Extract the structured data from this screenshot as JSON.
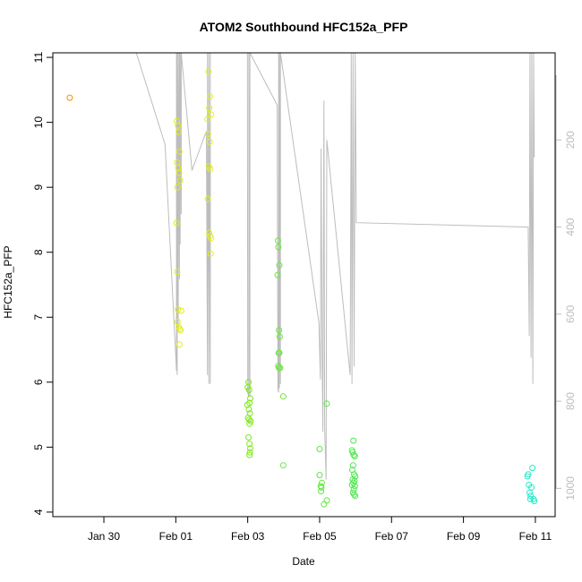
{
  "chart_data": {
    "type": "scatter",
    "title": "ATOM2 Southbound HFC152a_PFP",
    "xlabel": "Date",
    "ylabel": "HFC152a_PFP",
    "x_ticks": [
      "Jan 30",
      "Feb 01",
      "Feb 03",
      "Feb 05",
      "Feb 07",
      "Feb 09",
      "Feb 11"
    ],
    "x_tick_days": [
      -1,
      1,
      3,
      5,
      7,
      9,
      11
    ],
    "xlim_days": [
      -2.42,
      11.55
    ],
    "ylim": [
      3.93,
      11.07
    ],
    "y_ticks": [
      4,
      5,
      6,
      7,
      8,
      9,
      10,
      11
    ],
    "y2_ticks": [
      200,
      400,
      600,
      800,
      1000
    ],
    "y2lim": [
      0,
      1065
    ],
    "grid": false,
    "colors": {
      "axis": "#000000",
      "altitude_line": "#bdbdbd",
      "right_axis": "#bdbdbd"
    },
    "points": [
      {
        "d": -1.95,
        "v": 10.38,
        "c": "#ff8c00"
      },
      {
        "d": 1.03,
        "v": 10.02,
        "c": "#e2ee1c"
      },
      {
        "d": 1.06,
        "v": 9.95,
        "c": "#e2ee1c"
      },
      {
        "d": 1.08,
        "v": 9.85,
        "c": "#e2ee1c"
      },
      {
        "d": 1.1,
        "v": 9.55,
        "c": "#e2ee1c"
      },
      {
        "d": 1.04,
        "v": 9.38,
        "c": "#e2ee1c"
      },
      {
        "d": 1.07,
        "v": 9.3,
        "c": "#e2ee1c"
      },
      {
        "d": 1.09,
        "v": 9.22,
        "c": "#e2ee1c"
      },
      {
        "d": 1.12,
        "v": 9.1,
        "c": "#e2ee1c"
      },
      {
        "d": 1.05,
        "v": 9.0,
        "c": "#e2ee1c"
      },
      {
        "d": 1.02,
        "v": 8.45,
        "c": "#e2ee1c"
      },
      {
        "d": 1.04,
        "v": 7.7,
        "c": "#e2ee1c"
      },
      {
        "d": 1.06,
        "v": 7.12,
        "c": "#e2ee1c"
      },
      {
        "d": 1.15,
        "v": 7.1,
        "c": "#e2ee1c"
      },
      {
        "d": 1.05,
        "v": 6.93,
        "c": "#e2ee1c"
      },
      {
        "d": 1.08,
        "v": 6.85,
        "c": "#e2ee1c"
      },
      {
        "d": 1.11,
        "v": 6.82,
        "c": "#e2ee1c"
      },
      {
        "d": 1.13,
        "v": 6.8,
        "c": "#e2ee1c"
      },
      {
        "d": 1.1,
        "v": 6.58,
        "c": "#e2ee1c"
      },
      {
        "d": 1.91,
        "v": 10.78,
        "c": "#e5f020"
      },
      {
        "d": 1.95,
        "v": 10.4,
        "c": "#e5f020"
      },
      {
        "d": 1.93,
        "v": 10.22,
        "c": "#e5f020"
      },
      {
        "d": 1.98,
        "v": 10.12,
        "c": "#e5f020"
      },
      {
        "d": 1.88,
        "v": 10.05,
        "c": "#e5f020"
      },
      {
        "d": 1.9,
        "v": 9.82,
        "c": "#e5f020"
      },
      {
        "d": 1.94,
        "v": 9.7,
        "c": "#e5f020"
      },
      {
        "d": 1.92,
        "v": 9.32,
        "c": "#e5f020"
      },
      {
        "d": 1.96,
        "v": 9.28,
        "c": "#e5f020"
      },
      {
        "d": 1.89,
        "v": 8.82,
        "c": "#e5f020"
      },
      {
        "d": 1.93,
        "v": 8.3,
        "c": "#e5f020"
      },
      {
        "d": 1.95,
        "v": 8.25,
        "c": "#e5f020"
      },
      {
        "d": 1.98,
        "v": 8.22,
        "c": "#e5f020"
      },
      {
        "d": 1.97,
        "v": 7.98,
        "c": "#e5f020"
      },
      {
        "d": 3.02,
        "v": 6.0,
        "c": "#7ee81e"
      },
      {
        "d": 3.0,
        "v": 5.92,
        "c": "#7ee81e"
      },
      {
        "d": 3.04,
        "v": 5.88,
        "c": "#7ee81e"
      },
      {
        "d": 3.07,
        "v": 5.75,
        "c": "#7ee81e"
      },
      {
        "d": 3.05,
        "v": 5.68,
        "c": "#7ee81e"
      },
      {
        "d": 2.99,
        "v": 5.65,
        "c": "#7ee81e"
      },
      {
        "d": 3.03,
        "v": 5.58,
        "c": "#7ee81e"
      },
      {
        "d": 3.06,
        "v": 5.52,
        "c": "#7ee81e"
      },
      {
        "d": 3.01,
        "v": 5.45,
        "c": "#7ee81e"
      },
      {
        "d": 3.04,
        "v": 5.42,
        "c": "#7ee81e"
      },
      {
        "d": 3.08,
        "v": 5.4,
        "c": "#7ee81e"
      },
      {
        "d": 3.05,
        "v": 5.36,
        "c": "#7ee81e"
      },
      {
        "d": 3.02,
        "v": 5.15,
        "c": "#7ee81e"
      },
      {
        "d": 3.05,
        "v": 5.05,
        "c": "#7ee81e"
      },
      {
        "d": 3.07,
        "v": 4.98,
        "c": "#7ee81e"
      },
      {
        "d": 3.06,
        "v": 4.92,
        "c": "#7ee81e"
      },
      {
        "d": 3.05,
        "v": 4.88,
        "c": "#7ee81e"
      },
      {
        "d": 3.84,
        "v": 8.18,
        "c": "#6ce83a"
      },
      {
        "d": 3.85,
        "v": 8.08,
        "c": "#6ce83a"
      },
      {
        "d": 3.88,
        "v": 7.8,
        "c": "#6ce83a"
      },
      {
        "d": 3.83,
        "v": 7.65,
        "c": "#6ce83a"
      },
      {
        "d": 3.87,
        "v": 6.8,
        "c": "#6ce83a"
      },
      {
        "d": 3.89,
        "v": 6.7,
        "c": "#6ce83a"
      },
      {
        "d": 3.86,
        "v": 6.45,
        "c": "#6ce83a"
      },
      {
        "d": 3.88,
        "v": 6.45,
        "c": "#6ce83a"
      },
      {
        "d": 3.85,
        "v": 6.25,
        "c": "#6ce83a"
      },
      {
        "d": 3.87,
        "v": 6.22,
        "c": "#6ce83a"
      },
      {
        "d": 3.9,
        "v": 6.22,
        "c": "#6ce83a"
      },
      {
        "d": 3.99,
        "v": 5.78,
        "c": "#6ce83a"
      },
      {
        "d": 3.99,
        "v": 4.72,
        "c": "#6ce83a"
      },
      {
        "d": 5.0,
        "v": 4.97,
        "c": "#5ee840"
      },
      {
        "d": 5.0,
        "v": 4.57,
        "c": "#5ee840"
      },
      {
        "d": 5.06,
        "v": 4.45,
        "c": "#5ee840"
      },
      {
        "d": 5.03,
        "v": 4.4,
        "c": "#5ee840"
      },
      {
        "d": 5.05,
        "v": 4.38,
        "c": "#5ee840"
      },
      {
        "d": 5.04,
        "v": 4.32,
        "c": "#5ee840"
      },
      {
        "d": 5.2,
        "v": 5.67,
        "c": "#5ee840"
      },
      {
        "d": 5.2,
        "v": 4.18,
        "c": "#5ee840"
      },
      {
        "d": 5.12,
        "v": 4.12,
        "c": "#5ee840"
      },
      {
        "d": 5.94,
        "v": 5.1,
        "c": "#4ee84e"
      },
      {
        "d": 5.9,
        "v": 4.95,
        "c": "#4ee84e"
      },
      {
        "d": 5.92,
        "v": 4.92,
        "c": "#4ee84e"
      },
      {
        "d": 5.95,
        "v": 4.88,
        "c": "#4ee84e"
      },
      {
        "d": 5.98,
        "v": 4.86,
        "c": "#4ee84e"
      },
      {
        "d": 5.93,
        "v": 4.72,
        "c": "#4ee84e"
      },
      {
        "d": 5.91,
        "v": 4.65,
        "c": "#4ee84e"
      },
      {
        "d": 5.96,
        "v": 4.58,
        "c": "#4ee84e"
      },
      {
        "d": 5.99,
        "v": 4.55,
        "c": "#4ee84e"
      },
      {
        "d": 5.92,
        "v": 4.5,
        "c": "#4ee84e"
      },
      {
        "d": 5.97,
        "v": 4.48,
        "c": "#4ee84e"
      },
      {
        "d": 5.94,
        "v": 4.45,
        "c": "#4ee84e"
      },
      {
        "d": 5.9,
        "v": 4.42,
        "c": "#4ee84e"
      },
      {
        "d": 5.98,
        "v": 4.4,
        "c": "#4ee84e"
      },
      {
        "d": 5.95,
        "v": 4.35,
        "c": "#4ee84e"
      },
      {
        "d": 5.93,
        "v": 4.3,
        "c": "#4ee84e"
      },
      {
        "d": 5.96,
        "v": 4.27,
        "c": "#4ee84e"
      },
      {
        "d": 5.99,
        "v": 4.25,
        "c": "#4ee84e"
      },
      {
        "d": 10.8,
        "v": 4.58,
        "c": "#22ecc8"
      },
      {
        "d": 10.78,
        "v": 4.55,
        "c": "#22ecc8"
      },
      {
        "d": 10.92,
        "v": 4.68,
        "c": "#22ecc8"
      },
      {
        "d": 10.82,
        "v": 4.42,
        "c": "#22ecc8"
      },
      {
        "d": 10.89,
        "v": 4.38,
        "c": "#22ecc8"
      },
      {
        "d": 10.84,
        "v": 4.3,
        "c": "#22ecc8"
      },
      {
        "d": 10.87,
        "v": 4.25,
        "c": "#22ecc8"
      },
      {
        "d": 10.86,
        "v": 4.2,
        "c": "#22ecc8"
      },
      {
        "d": 10.95,
        "v": 4.2,
        "c": "#22ecc8"
      },
      {
        "d": 10.97,
        "v": 4.17,
        "c": "#22ecc8"
      }
    ],
    "altitude_track": [
      [
        -0.1,
        0
      ],
      [
        0.7,
        210
      ],
      [
        1.02,
        730
      ],
      [
        1.02,
        0
      ],
      [
        1.04,
        740
      ],
      [
        1.04,
        0
      ],
      [
        1.07,
        640
      ],
      [
        1.07,
        0
      ],
      [
        1.1,
        520
      ],
      [
        1.1,
        0
      ],
      [
        1.12,
        440
      ],
      [
        1.12,
        0
      ],
      [
        1.15,
        370
      ],
      [
        1.15,
        0
      ],
      [
        1.45,
        270
      ],
      [
        1.85,
        180
      ],
      [
        1.88,
        740
      ],
      [
        1.88,
        0
      ],
      [
        1.92,
        760
      ],
      [
        1.92,
        0
      ],
      [
        1.96,
        760
      ],
      [
        1.96,
        0
      ],
      [
        2.99,
        0
      ],
      [
        3.0,
        780
      ],
      [
        3.03,
        790
      ],
      [
        3.03,
        0
      ],
      [
        3.06,
        790
      ],
      [
        3.06,
        0
      ],
      [
        3.82,
        120
      ],
      [
        3.84,
        770
      ],
      [
        3.86,
        780
      ],
      [
        3.86,
        0
      ],
      [
        3.88,
        770
      ],
      [
        3.88,
        0
      ],
      [
        3.91,
        760
      ],
      [
        3.91,
        0
      ],
      [
        4.98,
        620
      ],
      [
        5.02,
        750
      ],
      [
        5.04,
        220
      ],
      [
        5.07,
        700
      ],
      [
        5.09,
        870
      ],
      [
        5.12,
        110
      ],
      [
        5.14,
        860
      ],
      [
        5.18,
        980
      ],
      [
        5.2,
        200
      ],
      [
        5.85,
        740
      ],
      [
        5.88,
        0
      ],
      [
        5.9,
        760
      ],
      [
        5.93,
        0
      ],
      [
        5.96,
        720
      ],
      [
        5.99,
        0
      ],
      [
        6.02,
        390
      ],
      [
        10.8,
        400
      ],
      [
        10.83,
        650
      ],
      [
        10.85,
        0
      ],
      [
        10.88,
        700
      ],
      [
        10.9,
        0
      ],
      [
        10.93,
        760
      ],
      [
        10.95,
        0
      ],
      [
        10.97,
        240
      ]
    ]
  }
}
